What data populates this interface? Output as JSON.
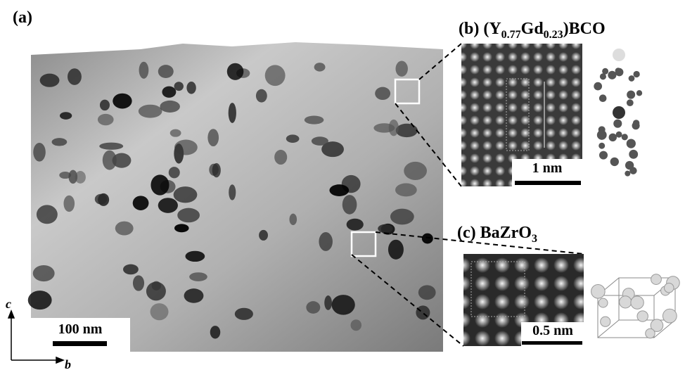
{
  "panels": {
    "a": {
      "label": "(a)",
      "scale_bar": "100 nm"
    },
    "b": {
      "label": "(b) (Y",
      "sub1": "0.77",
      "mid": "Gd",
      "sub2": "0.23",
      "tail": ")BCO",
      "scale_bar": "1 nm"
    },
    "c": {
      "label": "(c) BaZrO",
      "sub": "3",
      "scale_bar": "0.5 nm"
    }
  },
  "axes": {
    "vertical": "c",
    "horizontal": "b"
  }
}
